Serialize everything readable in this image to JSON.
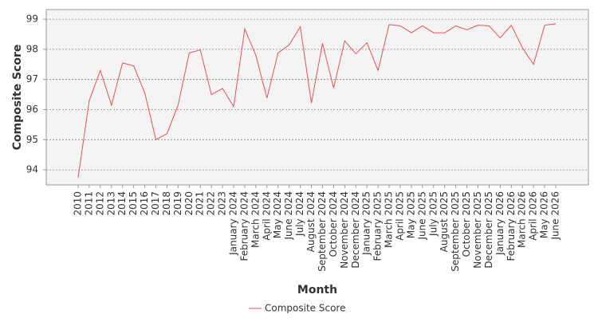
{
  "chart_data": {
    "type": "line",
    "x_label": "Month",
    "y_label": "Composite Score",
    "categories": [
      "2010",
      "2011",
      "2012",
      "2013",
      "2014",
      "2015",
      "2016",
      "2017",
      "2018",
      "2019",
      "2020",
      "2021",
      "2022",
      "2023",
      "January 2024",
      "February 2024",
      "March 2024",
      "April 2024",
      "May 2024",
      "June 2024",
      "July 2024",
      "August 2024",
      "September 2024",
      "October 2024",
      "November 2024",
      "December 2024",
      "January 2025",
      "February 2025",
      "March 2025",
      "April 2025",
      "May 2025",
      "June 2025",
      "July 2025",
      "August 2025",
      "September 2025",
      "October 2025",
      "November 2025",
      "December 2025",
      "January 2026",
      "February 2026",
      "March 2026",
      "April 2026",
      "May 2026",
      "June 2026"
    ],
    "series": [
      {
        "name": "Composite Score",
        "color": "#f05050",
        "values": [
          93.75,
          96.3,
          97.3,
          96.15,
          97.55,
          97.45,
          96.55,
          95.0,
          95.2,
          96.15,
          97.88,
          97.98,
          96.5,
          96.7,
          96.1,
          98.68,
          97.8,
          96.38,
          97.88,
          98.15,
          98.75,
          96.22,
          98.2,
          96.72,
          98.28,
          97.85,
          98.22,
          97.3,
          98.82,
          98.78,
          98.55,
          98.78,
          98.55,
          98.55,
          98.78,
          98.65,
          98.8,
          98.78,
          98.38,
          98.8,
          98.05,
          97.5,
          98.8,
          98.85
        ]
      }
    ],
    "ylim": [
      93.5,
      99.32
    ],
    "yticks": [
      94,
      95,
      96,
      97,
      98,
      99
    ],
    "grid": true,
    "legend": "bottom"
  }
}
